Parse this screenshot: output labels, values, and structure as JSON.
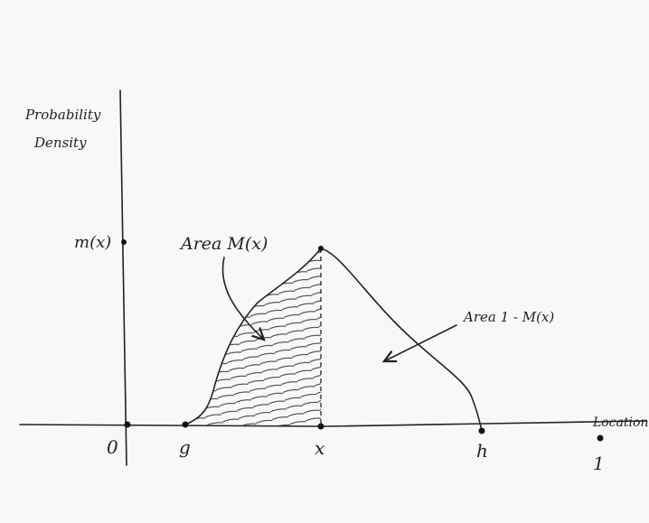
{
  "y_label": [
    "Probability",
    "Density"
  ],
  "x_label": "Location",
  "x_ticks": [
    "0",
    "g",
    "x",
    "h",
    "1"
  ],
  "y_ticks": [
    "m(x)"
  ],
  "annotations": [
    "Area M(x)",
    "Area 1 - M(x)"
  ]
}
